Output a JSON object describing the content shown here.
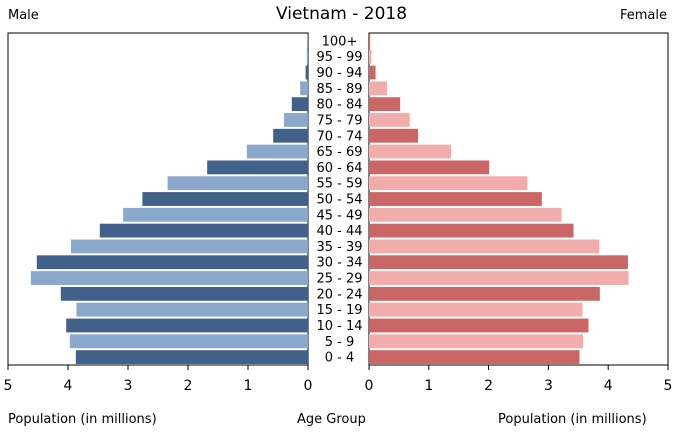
{
  "chart_data": {
    "type": "bar",
    "subtype": "population-pyramid",
    "title": "Vietnam - 2018",
    "left_side_label": "Male",
    "right_side_label": "Female",
    "xlabel_left": "Population (in millions)",
    "xlabel_center": "Age Group",
    "xlabel_right": "Population (in millions)",
    "xlim": [
      0,
      5
    ],
    "x_ticks": [
      "5",
      "4",
      "3",
      "2",
      "1",
      "0",
      "0",
      "1",
      "2",
      "3",
      "4",
      "5"
    ],
    "categories": [
      "100+",
      "95 - 99",
      "90 - 94",
      "85 - 89",
      "80 - 84",
      "75 - 79",
      "70 - 74",
      "65 - 69",
      "60 - 64",
      "55 - 59",
      "50 - 54",
      "45 - 49",
      "40 - 44",
      "35 - 39",
      "30 - 34",
      "25 - 29",
      "20 - 24",
      "15 - 19",
      "10 - 14",
      "5 - 9",
      "0 - 4"
    ],
    "series": [
      {
        "name": "Male",
        "values": [
          0.01,
          0.02,
          0.04,
          0.13,
          0.27,
          0.4,
          0.58,
          1.02,
          1.68,
          2.34,
          2.76,
          3.08,
          3.47,
          3.95,
          4.52,
          4.62,
          4.12,
          3.86,
          4.03,
          3.97,
          3.87
        ],
        "colors": [
          "#41618a",
          "#89a8cb"
        ]
      },
      {
        "name": "Female",
        "values": [
          0.02,
          0.04,
          0.11,
          0.3,
          0.52,
          0.68,
          0.82,
          1.37,
          2.01,
          2.65,
          2.89,
          3.22,
          3.42,
          3.85,
          4.33,
          4.34,
          3.86,
          3.57,
          3.67,
          3.58,
          3.52
        ],
        "colors": [
          "#cb6666",
          "#f2acac"
        ]
      }
    ],
    "grid": false,
    "legend": "none"
  }
}
